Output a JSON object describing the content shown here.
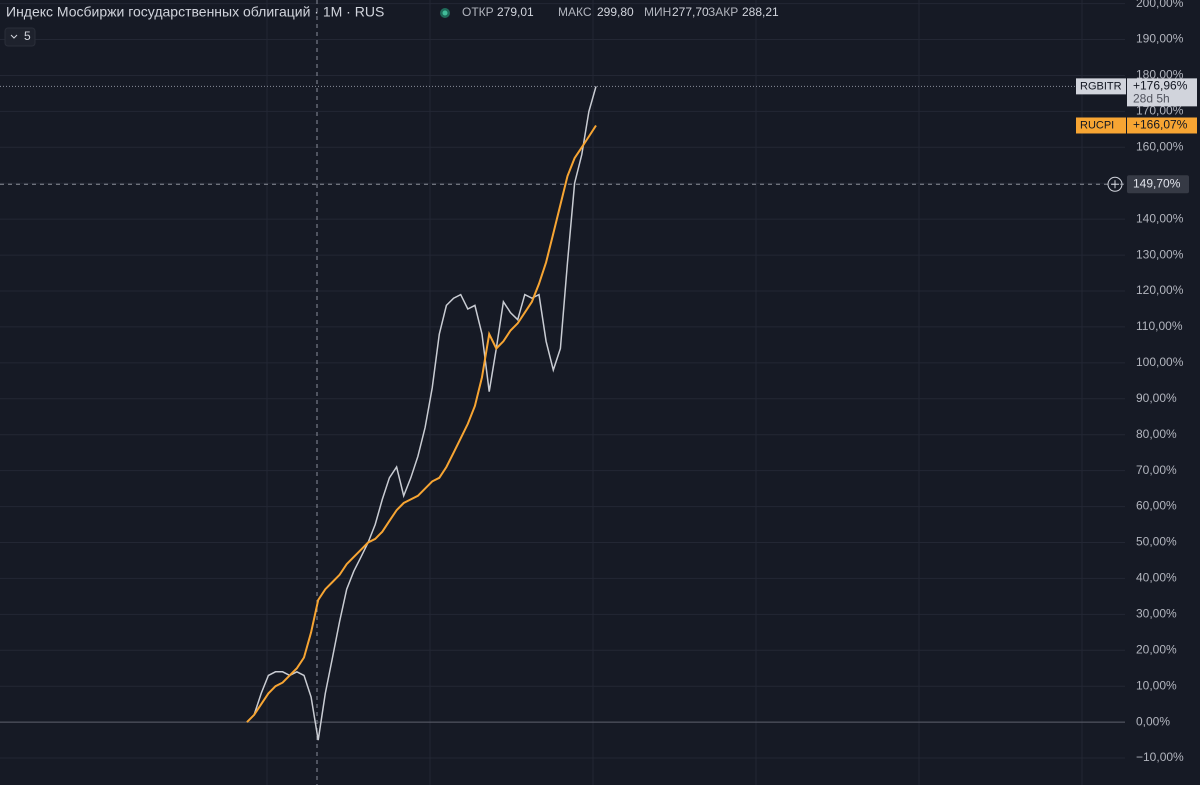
{
  "header": {
    "title": "Индекс Мосбиржи государственных облигаций · 1M · RUS",
    "open_label": "ОТКР",
    "open": "279,01",
    "high_label": "МАКС",
    "high": "299,80",
    "low_label": "МИН",
    "low": "277,70",
    "close_label": "ЗАКР",
    "close": "288,21",
    "indicator_count": "5"
  },
  "chart_data": {
    "type": "line",
    "ylim": [
      -17.5,
      201
    ],
    "yticks": [
      {
        "value": -10,
        "label": "−10,00%"
      },
      {
        "value": 0,
        "label": "0,00%"
      },
      {
        "value": 10,
        "label": "10,00%"
      },
      {
        "value": 20,
        "label": "20,00%"
      },
      {
        "value": 30,
        "label": "30,00%"
      },
      {
        "value": 40,
        "label": "40,00%"
      },
      {
        "value": 50,
        "label": "50,00%"
      },
      {
        "value": 60,
        "label": "60,00%"
      },
      {
        "value": 70,
        "label": "70,00%"
      },
      {
        "value": 80,
        "label": "80,00%"
      },
      {
        "value": 90,
        "label": "90,00%"
      },
      {
        "value": 100,
        "label": "100,00%"
      },
      {
        "value": 110,
        "label": "110,00%"
      },
      {
        "value": 120,
        "label": "120,00%"
      },
      {
        "value": 130,
        "label": "130,00%"
      },
      {
        "value": 140,
        "label": "140,00%"
      },
      {
        "value": 150,
        "label": "150,00%"
      },
      {
        "value": 160,
        "label": "160,00%"
      },
      {
        "value": 170,
        "label": "170,00%"
      },
      {
        "value": 180,
        "label": "180,00%"
      },
      {
        "value": 190,
        "label": "190,00%"
      },
      {
        "value": 200,
        "label": "200,00%"
      }
    ],
    "grid": true,
    "series": [
      {
        "name": "RGBITR",
        "color": "#c9ccd3",
        "last_label": "+176,96%",
        "countdown": "28d 5h",
        "values": [
          0,
          2,
          8,
          13,
          14,
          14,
          13,
          14,
          13,
          7,
          -5,
          8,
          18,
          28,
          37,
          42,
          46,
          50,
          55,
          62,
          68,
          71,
          63,
          68,
          74,
          82,
          93,
          108,
          116,
          118,
          119,
          115,
          116,
          108,
          92,
          104,
          117,
          114,
          112,
          119,
          118,
          119,
          106,
          98,
          104,
          128,
          150,
          158,
          170,
          176.96
        ]
      },
      {
        "name": "RUCPI",
        "color": "#f7a533",
        "last_label": "+166,07%",
        "values": [
          0,
          2,
          5,
          8,
          10,
          11,
          13,
          15,
          18,
          25,
          34,
          37,
          39,
          41,
          44,
          46,
          48,
          50,
          51,
          53,
          56,
          59,
          61,
          62,
          63,
          65,
          67,
          68,
          71,
          75,
          79,
          83,
          88,
          96,
          108,
          104,
          106,
          109,
          111,
          114,
          117,
          122,
          128,
          136,
          144,
          152,
          157,
          160,
          163,
          166.07
        ]
      }
    ],
    "crosshair": {
      "value": 149.7,
      "label": "149,70%"
    }
  }
}
